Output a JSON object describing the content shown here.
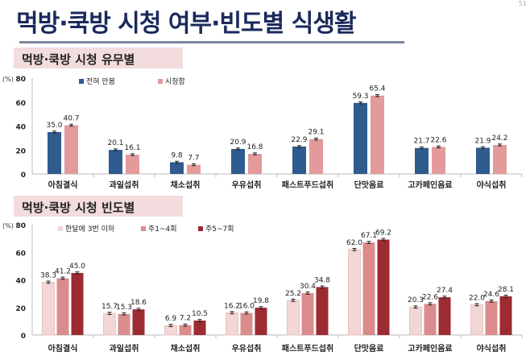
{
  "title": "먹방·쿡방 시청 여부·빈도별 식생활",
  "page_number": "51",
  "chart_data": [
    {
      "type": "bar",
      "title": "먹방·쿡방 시청 유무별",
      "ylabel": "(%)",
      "ylim": [
        0,
        80
      ],
      "yticks": [
        0,
        20,
        40,
        60,
        80
      ],
      "legend": "top-left",
      "error_bars": true,
      "categories": [
        "아침결식",
        "과일섭취",
        "채소섭취",
        "우유섭취",
        "패스트푸드섭취",
        "단맛음료",
        "고카페인음료",
        "야식섭취"
      ],
      "series": [
        {
          "name": "전혀 안봄",
          "color": "#2f5b8f",
          "values": [
            35.0,
            20.1,
            9.8,
            20.9,
            22.9,
            59.3,
            21.7,
            21.9
          ]
        },
        {
          "name": "시청함",
          "color": "#e29a9b",
          "values": [
            40.7,
            16.1,
            7.7,
            16.8,
            29.1,
            65.4,
            22.6,
            24.2
          ]
        }
      ]
    },
    {
      "type": "bar",
      "title": "먹방·쿡방 시청 빈도별",
      "ylabel": "(%)",
      "ylim": [
        0,
        80
      ],
      "yticks": [
        0,
        20,
        40,
        60,
        80
      ],
      "legend": "top-left",
      "error_bars": true,
      "categories": [
        "아침결식",
        "과일섭취",
        "채소섭취",
        "우유섭취",
        "패스트푸드섭취",
        "단맛음료",
        "고카페인음료",
        "야식섭취"
      ],
      "series": [
        {
          "name": "한달에 3번 이하",
          "color": "#f3d6d6",
          "values": [
            38.3,
            15.7,
            6.9,
            16.2,
            25.2,
            62.0,
            20.3,
            22.0
          ]
        },
        {
          "name": "주1~4회",
          "color": "#da8c8d",
          "values": [
            41.2,
            15.3,
            7.2,
            16.0,
            30.4,
            67.1,
            22.6,
            24.6
          ]
        },
        {
          "name": "주5~7회",
          "color": "#9c2b32",
          "values": [
            45.0,
            18.6,
            10.5,
            19.8,
            34.8,
            69.2,
            27.4,
            28.1
          ]
        }
      ]
    }
  ]
}
